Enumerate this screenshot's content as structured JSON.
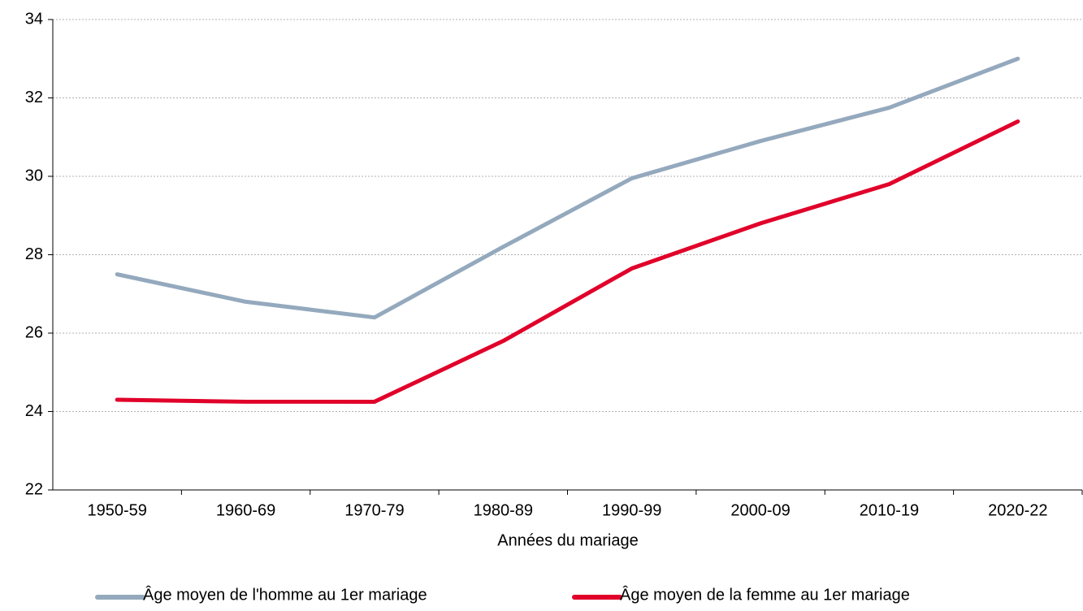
{
  "chart_data": {
    "type": "line",
    "x_label": "Années du mariage",
    "categories": [
      "1950-59",
      "1960-69",
      "1970-79",
      "1980-89",
      "1990-99",
      "2000-09",
      "2010-19",
      "2020-22"
    ],
    "series": [
      {
        "name": "Âge moyen de l'homme au 1er mariage",
        "color": "#94a9bd",
        "values": [
          27.5,
          26.8,
          26.4,
          28.2,
          29.95,
          30.9,
          31.75,
          33.0
        ]
      },
      {
        "name": "Âge moyen de la femme au 1er mariage",
        "color": "#e0002a",
        "values": [
          24.3,
          24.25,
          24.25,
          25.8,
          27.65,
          28.8,
          29.8,
          31.4
        ]
      }
    ],
    "ylim": [
      22,
      34
    ],
    "yticks": [
      22,
      24,
      26,
      28,
      30,
      32,
      34
    ],
    "grid": true,
    "legend": "bottom"
  }
}
